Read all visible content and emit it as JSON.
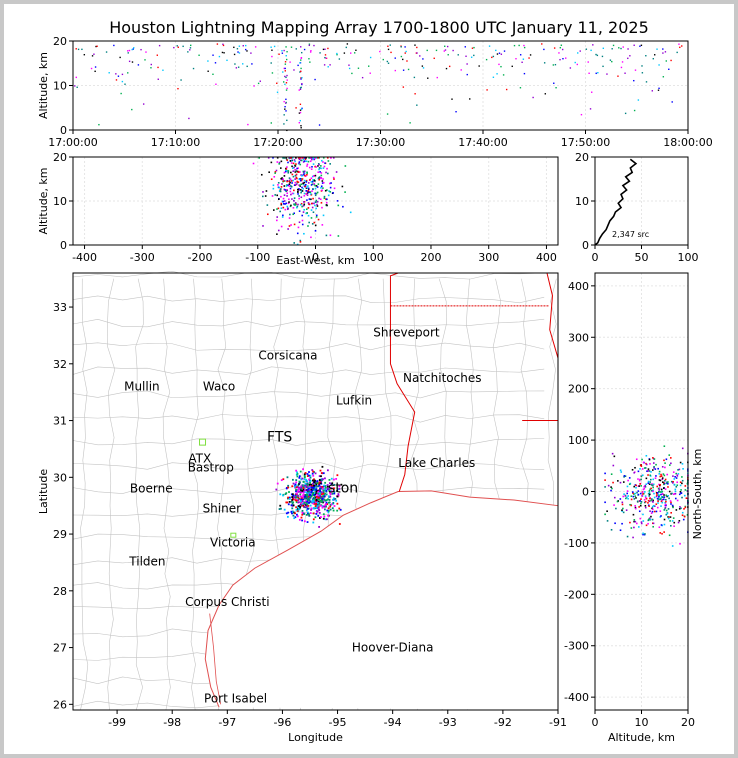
{
  "title": "Houston Lightning Mapping Array 1700-1800 UTC January 11, 2025",
  "colors": {
    "frame_bg": "#c8c8c8",
    "state_border": "#e00000",
    "coast": "#e05050",
    "county": "#c4c4c4",
    "grid": "#e6e6e6",
    "source_palette": [
      "#0000ff",
      "#008080",
      "#00b050",
      "#ff0000",
      "#000000",
      "#9400d3",
      "#00c8ff",
      "#ff00ff"
    ]
  },
  "chart_data": [
    {
      "type": "scatter",
      "name": "time-altitude",
      "ylabel": "Altitude, km",
      "xlabel": "",
      "xlim": [
        "17:00:00",
        "18:00:00"
      ],
      "ylim": [
        0,
        20
      ],
      "x_ticks": [
        "17:00:00",
        "17:10:00",
        "17:20:00",
        "17:30:00",
        "17:40:00",
        "17:50:00",
        "18:00:00"
      ],
      "y_ticks": [
        0,
        10,
        20
      ]
    },
    {
      "type": "scatter",
      "name": "east-west-altitude",
      "xlabel": "East-West, km",
      "ylabel": "Altitude, km",
      "xlim": [
        -420,
        420
      ],
      "ylim": [
        0,
        20
      ],
      "x_ticks": [
        -400,
        -300,
        -200,
        -100,
        0,
        100,
        200,
        300,
        400
      ],
      "y_ticks": [
        0,
        10,
        20
      ]
    },
    {
      "type": "line",
      "name": "altitude-histogram",
      "xlim": [
        0,
        100
      ],
      "ylim": [
        0,
        20
      ],
      "x_ticks": [
        0,
        50,
        100
      ],
      "y_ticks": [
        0,
        10,
        20
      ],
      "annotation": "2,347 src",
      "profile": [
        [
          3,
          0.5
        ],
        [
          5,
          1.5
        ],
        [
          8,
          2.5
        ],
        [
          12,
          3.5
        ],
        [
          14,
          4.5
        ],
        [
          16,
          5.5
        ],
        [
          20,
          6.5
        ],
        [
          22,
          7.5
        ],
        [
          28,
          8.5
        ],
        [
          25,
          9.5
        ],
        [
          30,
          10.5
        ],
        [
          28,
          11.5
        ],
        [
          34,
          12.5
        ],
        [
          30,
          13.5
        ],
        [
          37,
          14.5
        ],
        [
          33,
          15.5
        ],
        [
          40,
          16.5
        ],
        [
          38,
          17.5
        ],
        [
          44,
          18.5
        ],
        [
          38,
          19.5
        ]
      ]
    },
    {
      "type": "scatter",
      "name": "plan-view-map",
      "xlabel": "Longitude",
      "ylabel": "Latitude",
      "xlim": [
        -99.8,
        -91.0
      ],
      "ylim": [
        25.9,
        33.6
      ],
      "x_ticks": [
        -99,
        -98,
        -97,
        -96,
        -95,
        -94,
        -93,
        -92,
        -91
      ],
      "y_ticks": [
        26,
        27,
        28,
        29,
        30,
        31,
        32,
        33
      ],
      "cities": [
        {
          "name": "Shreveport",
          "lon": -93.75,
          "lat": 32.55,
          "color": "#000000"
        },
        {
          "name": "Corsicana",
          "lon": -95.9,
          "lat": 32.15,
          "color": "#000000"
        },
        {
          "name": "Natchitoches",
          "lon": -93.1,
          "lat": 31.75,
          "color": "#000000"
        },
        {
          "name": "Mullin",
          "lon": -98.55,
          "lat": 31.6,
          "color": "#ff8c40"
        },
        {
          "name": "Waco",
          "lon": -97.15,
          "lat": 31.6,
          "color": "#000000"
        },
        {
          "name": "Lufkin",
          "lon": -94.7,
          "lat": 31.35,
          "color": "#000000"
        },
        {
          "name": "Lake Charles",
          "lon": -93.2,
          "lat": 30.25,
          "color": "#000000"
        },
        {
          "name": "ATX",
          "lon": -97.5,
          "lat": 30.33,
          "color": "#ff8c40"
        },
        {
          "name": "Bastrop",
          "lon": -97.3,
          "lat": 30.17,
          "color": "#000000"
        },
        {
          "name": "Boerne",
          "lon": -98.38,
          "lat": 29.8,
          "color": "#000000"
        },
        {
          "name": "Shiner",
          "lon": -97.1,
          "lat": 29.45,
          "color": "#000000"
        },
        {
          "name": "Victoria",
          "lon": -96.9,
          "lat": 28.85,
          "color": "#000000"
        },
        {
          "name": "Tilden",
          "lon": -98.45,
          "lat": 28.52,
          "color": "#000000"
        },
        {
          "name": "Corpus Christi",
          "lon": -97.0,
          "lat": 27.8,
          "color": "#000000"
        },
        {
          "name": "Hoover-Diana",
          "lon": -94.0,
          "lat": 27.0,
          "color": "#0000ff"
        },
        {
          "name": "Port Isabel",
          "lon": -96.85,
          "lat": 26.1,
          "color": "#000000"
        }
      ],
      "partial_labels": [
        {
          "name": "FTS",
          "lon": -96.05,
          "lat": 30.7,
          "color": "#e00000"
        },
        {
          "name": "ston",
          "lon": -94.9,
          "lat": 29.8,
          "color": "#ffa500"
        }
      ],
      "storm_center": {
        "lon": -95.5,
        "lat": 29.7
      }
    },
    {
      "type": "scatter",
      "name": "altitude-north-south",
      "xlabel": "Altitude, km",
      "ylabel": "North-South, km",
      "xlim": [
        0,
        20
      ],
      "ylim": [
        -425,
        425
      ],
      "x_ticks": [
        0,
        10,
        20
      ],
      "y_ticks": [
        -400,
        -300,
        -200,
        -100,
        0,
        100,
        200,
        300,
        400
      ]
    }
  ]
}
